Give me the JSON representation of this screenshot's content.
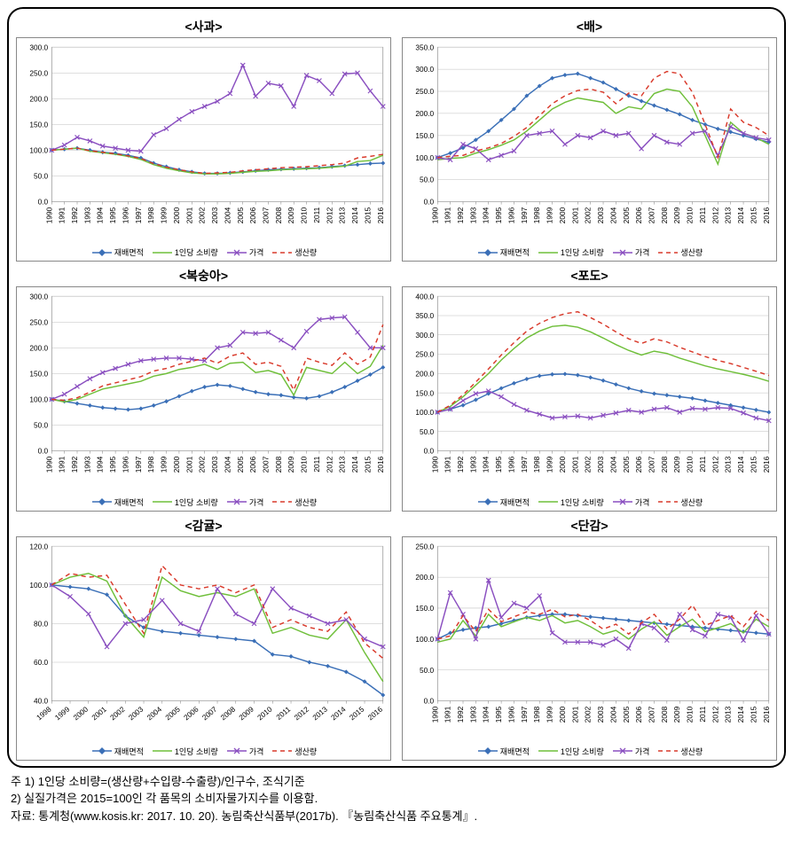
{
  "years": [
    "1990",
    "1991",
    "1992",
    "1993",
    "1994",
    "1995",
    "1996",
    "1997",
    "1998",
    "1999",
    "2000",
    "2001",
    "2002",
    "2003",
    "2004",
    "2005",
    "2006",
    "2007",
    "2008",
    "2009",
    "2010",
    "2011",
    "2012",
    "2013",
    "2014",
    "2015",
    "2016"
  ],
  "legend_labels": [
    "재배면적",
    "1인당 소비량",
    "가격",
    "생산량"
  ],
  "series_styles": {
    "area": {
      "color": "#3a6fb7",
      "dash": "",
      "marker": "diamond",
      "markerFill": "#3a6fb7"
    },
    "consumption": {
      "color": "#6fbf3a",
      "dash": "",
      "marker": "none",
      "markerFill": "#6fbf3a"
    },
    "price": {
      "color": "#8a4fc0",
      "dash": "",
      "marker": "x",
      "markerFill": "#8a4fc0"
    },
    "production": {
      "color": "#d93a2b",
      "dash": "5,4",
      "marker": "none",
      "markerFill": "#d93a2b"
    }
  },
  "axis_style": {
    "tick_fontsize": 8,
    "tick_color": "#000000",
    "grid_color": "#bfbfbf",
    "plot_border_color": "#7f7f7f",
    "background": "#ffffff"
  },
  "charts": [
    {
      "key": "apple",
      "title": "<사과>",
      "ylim": [
        0,
        300
      ],
      "ytick_step": 50,
      "series": {
        "area": [
          100,
          102,
          104,
          100,
          96,
          94,
          90,
          85,
          75,
          68,
          62,
          58,
          55,
          55,
          56,
          58,
          60,
          62,
          63,
          64,
          65,
          66,
          68,
          70,
          72,
          74,
          75
        ],
        "consumption": [
          100,
          102,
          104,
          98,
          95,
          92,
          88,
          82,
          72,
          65,
          60,
          56,
          54,
          54,
          55,
          57,
          59,
          60,
          62,
          63,
          64,
          65,
          67,
          69,
          78,
          80,
          90
        ],
        "price": [
          100,
          110,
          125,
          118,
          108,
          104,
          100,
          98,
          130,
          142,
          160,
          175,
          185,
          195,
          210,
          265,
          205,
          230,
          225,
          185,
          245,
          235,
          210,
          248,
          250,
          215,
          185
        ],
        "production": [
          100,
          102,
          104,
          99,
          96,
          93,
          89,
          84,
          74,
          67,
          62,
          58,
          55,
          56,
          57,
          60,
          62,
          64,
          66,
          67,
          68,
          70,
          72,
          75,
          85,
          88,
          92
        ]
      }
    },
    {
      "key": "pear",
      "title": "<배>",
      "ylim": [
        0,
        350
      ],
      "ytick_step": 50,
      "series": {
        "area": [
          100,
          110,
          122,
          140,
          160,
          185,
          210,
          240,
          262,
          280,
          287,
          290,
          280,
          270,
          255,
          240,
          228,
          218,
          208,
          198,
          185,
          175,
          165,
          158,
          150,
          142,
          135
        ],
        "consumption": [
          95,
          98,
          100,
          110,
          118,
          128,
          140,
          160,
          185,
          210,
          225,
          235,
          230,
          225,
          200,
          215,
          210,
          245,
          255,
          250,
          215,
          150,
          85,
          180,
          155,
          145,
          130
        ],
        "price": [
          100,
          95,
          130,
          120,
          95,
          105,
          115,
          150,
          155,
          160,
          130,
          150,
          145,
          160,
          150,
          155,
          120,
          150,
          135,
          130,
          155,
          160,
          105,
          170,
          155,
          145,
          140
        ],
        "production": [
          100,
          103,
          105,
          115,
          122,
          132,
          148,
          168,
          195,
          222,
          240,
          252,
          255,
          248,
          222,
          246,
          240,
          280,
          295,
          290,
          248,
          175,
          100,
          210,
          180,
          168,
          150
        ]
      }
    },
    {
      "key": "peach",
      "title": "<복숭아>",
      "ylim": [
        0,
        300
      ],
      "ytick_step": 50,
      "series": {
        "area": [
          100,
          96,
          92,
          88,
          84,
          82,
          80,
          82,
          88,
          96,
          106,
          116,
          124,
          128,
          126,
          120,
          114,
          110,
          108,
          104,
          102,
          106,
          114,
          124,
          136,
          148,
          162
        ],
        "consumption": [
          100,
          95,
          100,
          110,
          120,
          125,
          130,
          135,
          145,
          150,
          158,
          162,
          168,
          158,
          170,
          172,
          152,
          156,
          148,
          108,
          162,
          156,
          150,
          172,
          150,
          164,
          205
        ],
        "price": [
          100,
          110,
          125,
          140,
          152,
          160,
          168,
          175,
          178,
          180,
          180,
          178,
          175,
          200,
          205,
          230,
          228,
          230,
          215,
          200,
          232,
          255,
          258,
          260,
          230,
          200,
          200
        ],
        "production": [
          100,
          98,
          103,
          114,
          126,
          132,
          138,
          144,
          155,
          160,
          168,
          174,
          180,
          170,
          184,
          190,
          168,
          172,
          164,
          118,
          180,
          172,
          166,
          190,
          168,
          182,
          245
        ]
      }
    },
    {
      "key": "grape",
      "title": "<포도>",
      "ylim": [
        0,
        400
      ],
      "ytick_step": 50,
      "series": {
        "area": [
          100,
          108,
          118,
          132,
          148,
          162,
          175,
          186,
          194,
          198,
          199,
          196,
          190,
          182,
          172,
          162,
          154,
          148,
          144,
          140,
          136,
          130,
          124,
          118,
          112,
          106,
          100
        ],
        "consumption": [
          100,
          115,
          140,
          170,
          200,
          235,
          265,
          292,
          310,
          322,
          325,
          320,
          308,
          292,
          275,
          260,
          248,
          258,
          252,
          240,
          230,
          220,
          212,
          205,
          198,
          190,
          180
        ],
        "price": [
          100,
          108,
          130,
          148,
          155,
          140,
          120,
          105,
          95,
          85,
          88,
          90,
          85,
          92,
          98,
          105,
          100,
          108,
          112,
          100,
          110,
          108,
          112,
          110,
          98,
          85,
          78
        ],
        "production": [
          100,
          118,
          145,
          178,
          212,
          248,
          280,
          310,
          330,
          345,
          355,
          360,
          345,
          328,
          308,
          290,
          278,
          290,
          282,
          268,
          256,
          244,
          234,
          226,
          216,
          206,
          195
        ]
      }
    },
    {
      "key": "citrus",
      "title": "<감귤>",
      "years": [
        "1998",
        "1999",
        "2000",
        "2001",
        "2002",
        "2003",
        "2004",
        "2005",
        "2006",
        "2007",
        "2008",
        "2009",
        "2010",
        "2011",
        "2012",
        "2013",
        "2014",
        "2015",
        "2016"
      ],
      "ylim": [
        40,
        120
      ],
      "ytick_step": 20,
      "xrot": -40,
      "series": {
        "area": [
          100,
          99,
          98,
          95,
          84,
          78,
          76,
          75,
          74,
          73,
          72,
          71,
          64,
          63,
          60,
          58,
          55,
          50,
          43
        ],
        "consumption": [
          100,
          104,
          106,
          102,
          84,
          73,
          104,
          97,
          94,
          96,
          94,
          98,
          75,
          78,
          74,
          72,
          82,
          65,
          50
        ],
        "price": [
          100,
          94,
          85,
          68,
          80,
          82,
          92,
          80,
          76,
          98,
          85,
          80,
          98,
          88,
          84,
          80,
          82,
          72,
          68
        ],
        "production": [
          100,
          106,
          104,
          105,
          90,
          75,
          110,
          100,
          98,
          100,
          96,
          100,
          78,
          82,
          78,
          76,
          86,
          70,
          62
        ]
      }
    },
    {
      "key": "persimmon",
      "title": "<단감>",
      "ylim": [
        0,
        250
      ],
      "ytick_step": 50,
      "series": {
        "area": [
          100,
          110,
          115,
          118,
          120,
          125,
          130,
          135,
          138,
          140,
          140,
          138,
          136,
          134,
          132,
          130,
          128,
          126,
          124,
          122,
          120,
          118,
          116,
          114,
          112,
          110,
          108
        ],
        "consumption": [
          95,
          100,
          130,
          105,
          140,
          120,
          128,
          135,
          130,
          138,
          126,
          130,
          120,
          108,
          114,
          100,
          116,
          128,
          106,
          120,
          132,
          112,
          118,
          125,
          110,
          132,
          120
        ],
        "price": [
          100,
          175,
          140,
          100,
          195,
          135,
          158,
          150,
          170,
          110,
          95,
          95,
          95,
          90,
          100,
          85,
          125,
          118,
          98,
          140,
          115,
          105,
          140,
          135,
          98,
          138,
          108
        ],
        "production": [
          100,
          105,
          138,
          112,
          148,
          128,
          136,
          144,
          140,
          148,
          136,
          140,
          130,
          116,
          124,
          108,
          126,
          140,
          116,
          132,
          155,
          122,
          130,
          138,
          120,
          145,
          130
        ]
      }
    }
  ],
  "notes": [
    "주 1)  1인당 소비량=(생산량+수입량-수출량)/인구수, 조식기준",
    "     2)  실질가격은 2015=100인 각 품목의 소비자물가지수를 이용함.",
    "자료: 통계청(www.kosis.kr: 2017. 10. 20). 농림축산식품부(2017b). 『농림축산식품 주요통계』."
  ]
}
